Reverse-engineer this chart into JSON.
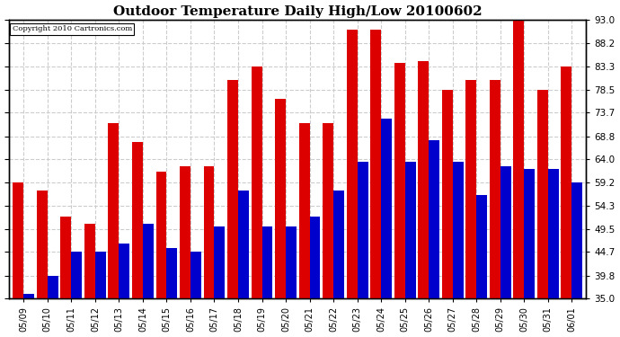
{
  "title": "Outdoor Temperature Daily High/Low 20100602",
  "copyright": "Copyright 2010 Cartronics.com",
  "dates": [
    "05/09",
    "05/10",
    "05/11",
    "05/12",
    "05/13",
    "05/14",
    "05/15",
    "05/16",
    "05/17",
    "05/18",
    "05/19",
    "05/20",
    "05/21",
    "05/22",
    "05/23",
    "05/24",
    "05/25",
    "05/26",
    "05/27",
    "05/28",
    "05/29",
    "05/30",
    "05/31",
    "06/01"
  ],
  "highs": [
    59.2,
    57.5,
    52.0,
    50.5,
    71.5,
    67.5,
    61.5,
    62.5,
    62.5,
    80.5,
    83.3,
    76.5,
    71.5,
    71.5,
    91.0,
    91.0,
    84.0,
    84.5,
    78.5,
    80.5,
    80.5,
    93.5,
    78.5,
    83.3
  ],
  "lows": [
    36.0,
    39.8,
    44.7,
    44.7,
    46.5,
    50.5,
    45.5,
    44.7,
    50.0,
    57.5,
    50.0,
    50.0,
    52.0,
    57.5,
    63.5,
    72.5,
    63.5,
    68.0,
    63.5,
    56.5,
    62.5,
    62.0,
    62.0,
    59.2
  ],
  "high_color": "#dd0000",
  "low_color": "#0000cc",
  "bg_color": "#ffffff",
  "grid_color": "#cccccc",
  "ylim_min": 35.0,
  "ylim_max": 93.0,
  "yticks": [
    35.0,
    39.8,
    44.7,
    49.5,
    54.3,
    59.2,
    64.0,
    68.8,
    73.7,
    78.5,
    83.3,
    88.2,
    93.0
  ]
}
